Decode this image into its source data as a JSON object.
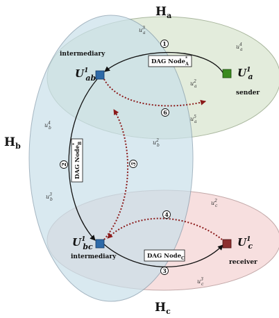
{
  "groups": {
    "a": {
      "base": "H",
      "sub": "a",
      "fill": "#dfe9d6",
      "stroke": "#9aaa8c"
    },
    "b": {
      "base": "H",
      "sub": "b",
      "fill": "#c9e0ea",
      "stroke": "#7f97a8"
    },
    "c": {
      "base": "H",
      "sub": "c",
      "fill": "#f6dada",
      "stroke": "#b89a9a"
    }
  },
  "main_nodes": {
    "ua1": {
      "base": "U",
      "sup": "1",
      "sub": "a",
      "role": "sender",
      "color": "#3a8a1e"
    },
    "uab1": {
      "base": "U",
      "sup": "1",
      "sub": "ab",
      "role": "intermediary",
      "color": "#2e6aa8"
    },
    "ubc1": {
      "base": "U",
      "sup": "1",
      "sub": "bc",
      "role": "intermediary",
      "color": "#2e6aa8"
    },
    "uc1": {
      "base": "U",
      "sup": "1",
      "sub": "c",
      "role": "receiver",
      "color": "#8c2f2f"
    }
  },
  "minor_nodes": {
    "ua3": {
      "base": "u",
      "sup": "3",
      "sub": "a"
    },
    "ua4": {
      "base": "u",
      "sup": "4",
      "sub": "a"
    },
    "ua2": {
      "base": "u",
      "sup": "2",
      "sub": "a"
    },
    "ua5": {
      "base": "u",
      "sup": "5",
      "sub": "a"
    },
    "ub4": {
      "base": "u",
      "sup": "4",
      "sub": "b"
    },
    "ub2": {
      "base": "u",
      "sup": "2",
      "sub": "b"
    },
    "ub3": {
      "base": "u",
      "sup": "3",
      "sub": "b"
    },
    "uc2": {
      "base": "u",
      "sup": "2",
      "sub": "c"
    },
    "uc3": {
      "base": "u",
      "sup": "3",
      "sub": "c"
    }
  },
  "dag_labels": {
    "a": {
      "base": "DAG Node",
      "sup": "*",
      "sub": "A"
    },
    "b": {
      "base": "DAG Node",
      "sup": "*",
      "sub": "B"
    },
    "c": {
      "base": "DAG Node",
      "sub": "C"
    }
  },
  "steps": [
    "1",
    "2",
    "3",
    "4",
    "5",
    "6"
  ],
  "colors": {
    "dotted_arrow": "#8b1a1a",
    "solid_arrow": "#111111"
  }
}
